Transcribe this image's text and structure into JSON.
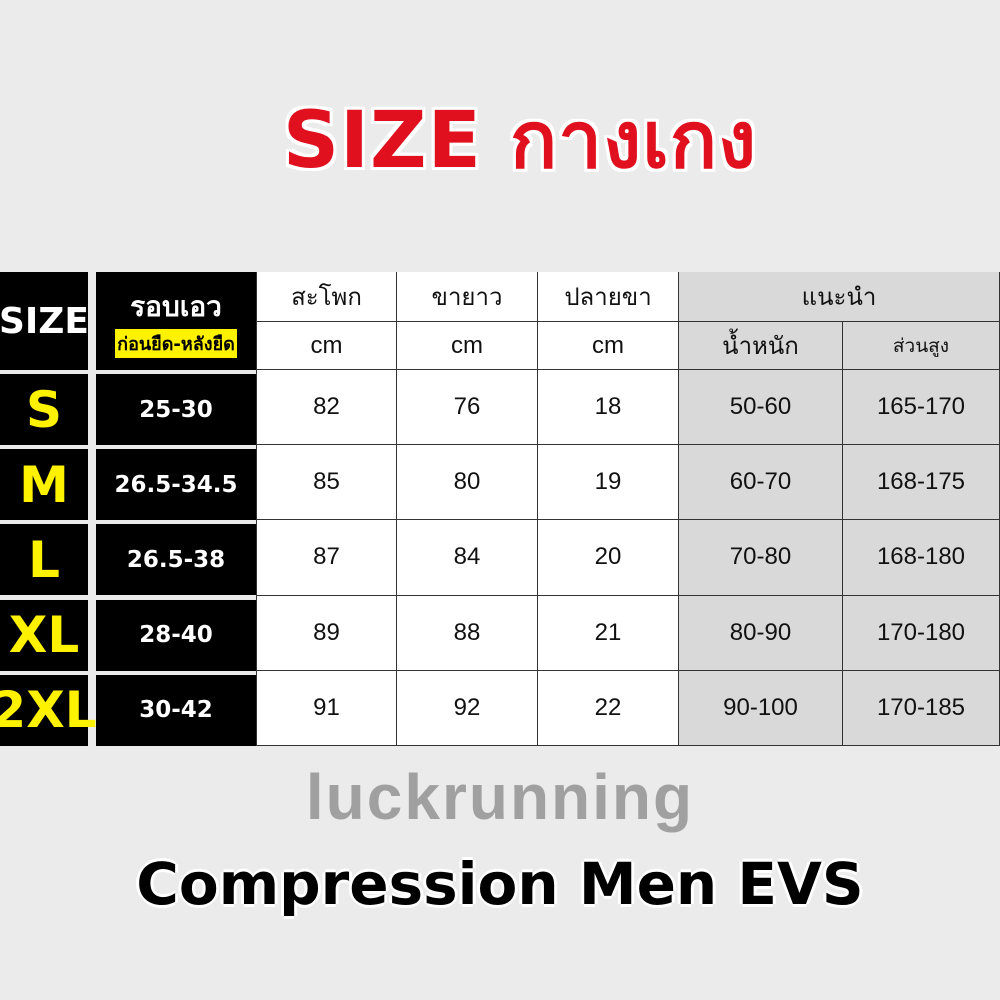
{
  "title": "SIZE กางเกง",
  "footer": "Compression Men EVS",
  "watermark": "luckrunning",
  "colors": {
    "title": "#e0101e",
    "size_label": "#fff200",
    "header_black": "#000000",
    "recommend_bg": "#d9d9d9"
  },
  "table": {
    "headers": {
      "size": "SIZE",
      "waist": "รอบเอว",
      "waist_sub": "ก่อนยืด-หลังยืด",
      "hip": "สะโพก",
      "length": "ขายาว",
      "hem": "ปลายขา",
      "unit": "cm",
      "recommend": "แนะนำ",
      "weight": "น้ำหนัก",
      "height": "ส่วนสูง"
    },
    "rows": [
      {
        "size": "S",
        "waist": "25-30",
        "hip": "82",
        "length": "76",
        "hem": "18",
        "weight": "50-60",
        "height": "165-170"
      },
      {
        "size": "M",
        "waist": "26.5-34.5",
        "hip": "85",
        "length": "80",
        "hem": "19",
        "weight": "60-70",
        "height": "168-175"
      },
      {
        "size": "L",
        "waist": "26.5-38",
        "hip": "87",
        "length": "84",
        "hem": "20",
        "weight": "70-80",
        "height": "168-180"
      },
      {
        "size": "XL",
        "waist": "28-40",
        "hip": "89",
        "length": "88",
        "hem": "21",
        "weight": "80-90",
        "height": "170-180"
      },
      {
        "size": "2XL",
        "waist": "30-42",
        "hip": "91",
        "length": "92",
        "hem": "22",
        "weight": "90-100",
        "height": "170-185"
      }
    ]
  }
}
